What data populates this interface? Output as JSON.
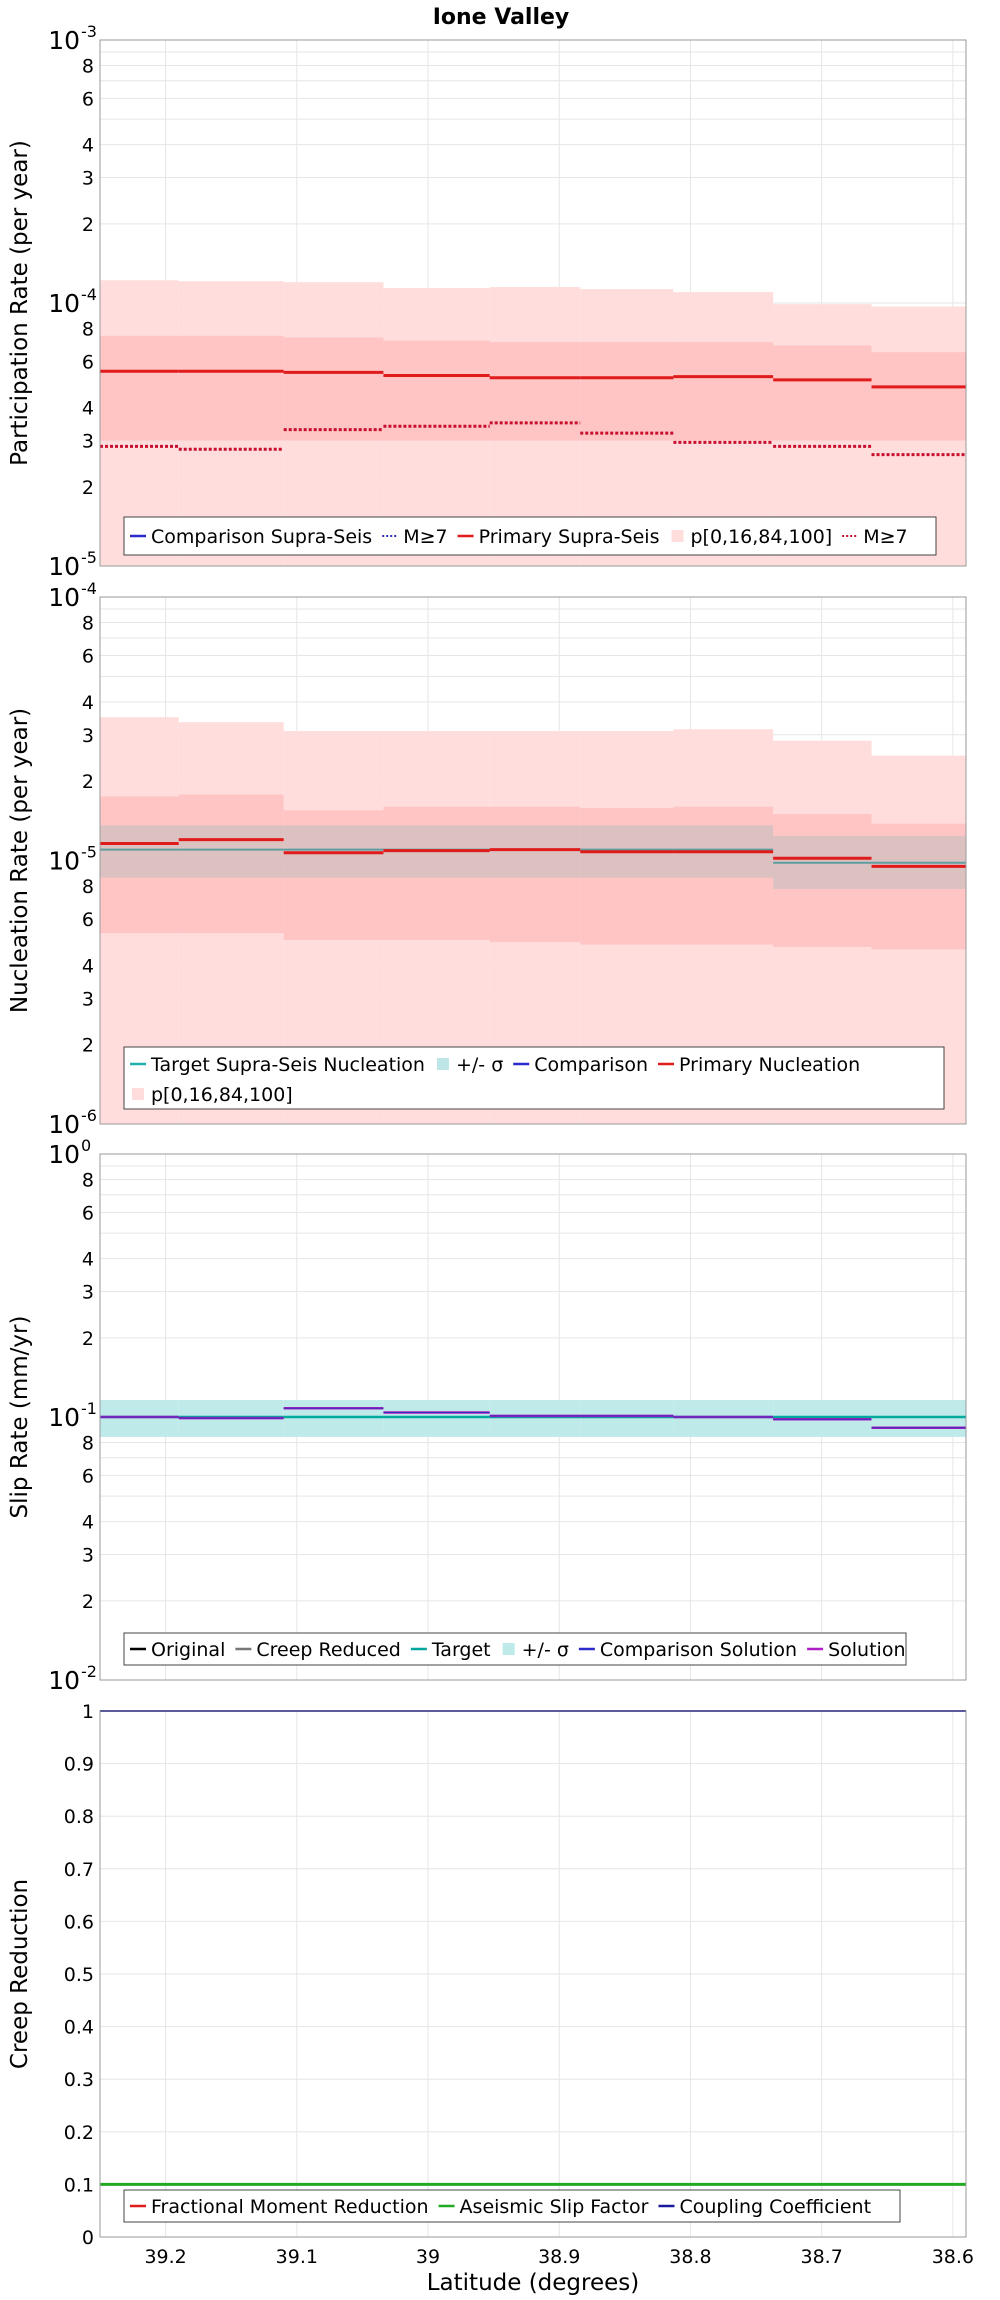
{
  "figure": {
    "title": "Ione Valley",
    "xlabel": "Latitude (degrees)",
    "x_ticks": [
      "39.2",
      "39.1",
      "39",
      "38.9",
      "38.8",
      "38.7",
      "38.6"
    ]
  },
  "chart_data": [
    {
      "type": "line",
      "ylabel": "Participation Rate (per year)",
      "yscale": "log",
      "ylim": [
        1e-05,
        0.001
      ],
      "xlim": [
        39.25,
        38.59
      ],
      "x_edges": [
        39.25,
        39.19,
        39.11,
        39.034,
        38.953,
        38.884,
        38.813,
        38.737,
        38.662,
        38.59
      ],
      "bands": [
        {
          "name": "p[0,16,84,100]",
          "color": "#ffdddd",
          "lo": [
            1e-05,
            1e-05,
            1e-05,
            1e-05,
            1e-05,
            1e-05,
            1e-05,
            1e-05,
            1e-05
          ],
          "hi": [
            0.000122,
            0.000121,
            0.00012,
            0.000114,
            0.000115,
            0.000113,
            0.00011,
            9.9e-05,
            9.7e-05
          ]
        },
        {
          "name": "p16-84",
          "color": "#ffc4c4",
          "lo": [
            3e-05,
            3e-05,
            3e-05,
            3e-05,
            3e-05,
            3e-05,
            3e-05,
            3e-05,
            3e-05
          ],
          "hi": [
            7.5e-05,
            7.5e-05,
            7.4e-05,
            7.2e-05,
            7.1e-05,
            7.1e-05,
            7.1e-05,
            6.9e-05,
            6.5e-05
          ]
        }
      ],
      "series": [
        {
          "name": "Primary Supra-Seis",
          "color": "#e01b1b",
          "width": 3,
          "dash": "",
          "values": [
            5.5e-05,
            5.5e-05,
            5.45e-05,
            5.3e-05,
            5.2e-05,
            5.2e-05,
            5.25e-05,
            5.1e-05,
            4.8e-05
          ]
        },
        {
          "name": "M≥7",
          "color": "#c8102e",
          "width": 3,
          "dash": "3,2",
          "values": [
            2.85e-05,
            2.78e-05,
            3.3e-05,
            3.4e-05,
            3.5e-05,
            3.2e-05,
            2.95e-05,
            2.85e-05,
            2.65e-05
          ]
        }
      ],
      "legend": [
        {
          "label": "Comparison Supra-Seis",
          "color": "#2b2bcc",
          "style": "line"
        },
        {
          "label": "M≥7",
          "color": "#2b2bcc",
          "style": "dot"
        },
        {
          "label": "Primary Supra-Seis",
          "color": "#e01b1b",
          "style": "line"
        },
        {
          "label": "p[0,16,84,100]",
          "color": "#ffdddd",
          "style": "box"
        },
        {
          "label": "M≥7",
          "color": "#c8102e",
          "style": "dot"
        }
      ]
    },
    {
      "type": "line",
      "ylabel": "Nucleation Rate (per year)",
      "yscale": "log",
      "ylim": [
        1e-06,
        0.0001
      ],
      "xlim": [
        39.25,
        38.59
      ],
      "x_edges": [
        39.25,
        39.19,
        39.11,
        39.034,
        38.953,
        38.884,
        38.813,
        38.737,
        38.662,
        38.59
      ],
      "bands": [
        {
          "name": "p[0,16,84,100]",
          "color": "#ffdddd",
          "lo": [
            1e-06,
            1e-06,
            1e-06,
            1e-06,
            1e-06,
            1e-06,
            1e-06,
            1e-06,
            1e-06
          ],
          "hi": [
            3.5e-05,
            3.35e-05,
            3.1e-05,
            3.1e-05,
            3.1e-05,
            3.1e-05,
            3.15e-05,
            2.85e-05,
            2.5e-05
          ]
        },
        {
          "name": "p16-84",
          "color": "#ffc4c4",
          "lo": [
            5.3e-06,
            5.3e-06,
            5e-06,
            5e-06,
            4.9e-06,
            4.8e-06,
            4.8e-06,
            4.7e-06,
            4.6e-06
          ],
          "hi": [
            1.75e-05,
            1.78e-05,
            1.55e-05,
            1.6e-05,
            1.6e-05,
            1.58e-05,
            1.6e-05,
            1.5e-05,
            1.38e-05
          ]
        },
        {
          "name": "+/- σ",
          "color": "#bfbfbf",
          "opacity": 0.55,
          "lo": [
            8.6e-06,
            8.6e-06,
            8.6e-06,
            8.6e-06,
            8.6e-06,
            8.6e-06,
            8.6e-06,
            7.8e-06,
            7.8e-06
          ],
          "hi": [
            1.36e-05,
            1.36e-05,
            1.36e-05,
            1.36e-05,
            1.36e-05,
            1.36e-05,
            1.36e-05,
            1.24e-05,
            1.24e-05
          ]
        }
      ],
      "series": [
        {
          "name": "Target Supra-Seis Nucleation",
          "color": "#5f9ea0",
          "width": 2,
          "dash": "",
          "values": [
            1.1e-05,
            1.1e-05,
            1.1e-05,
            1.1e-05,
            1.1e-05,
            1.1e-05,
            1.1e-05,
            9.8e-06,
            9.8e-06
          ]
        },
        {
          "name": "Primary Nucleation",
          "color": "#e01b1b",
          "width": 3,
          "dash": "",
          "values": [
            1.16e-05,
            1.2e-05,
            1.07e-05,
            1.09e-05,
            1.1e-05,
            1.08e-05,
            1.08e-05,
            1.02e-05,
            9.5e-06
          ]
        }
      ],
      "legend": [
        {
          "label": "Target Supra-Seis Nucleation",
          "color": "#20b2aa",
          "style": "line"
        },
        {
          "label": "+/- σ",
          "color": "#bfe6e6",
          "style": "box"
        },
        {
          "label": "Comparison",
          "color": "#2b2bcc",
          "style": "line"
        },
        {
          "label": "Primary Nucleation",
          "color": "#e01b1b",
          "style": "line"
        },
        {
          "label": "p[0,16,84,100]",
          "color": "#ffdddd",
          "style": "box"
        }
      ]
    },
    {
      "type": "line",
      "ylabel": "Slip Rate (mm/yr)",
      "yscale": "log",
      "ylim": [
        0.01,
        1
      ],
      "xlim": [
        39.25,
        38.59
      ],
      "x_edges": [
        39.25,
        39.19,
        39.11,
        39.034,
        38.953,
        38.884,
        38.813,
        38.737,
        38.662,
        38.59
      ],
      "bands": [
        {
          "name": "+/- σ",
          "color": "#bfeaea",
          "lo": [
            0.084,
            0.084,
            0.084,
            0.084,
            0.084,
            0.084,
            0.084,
            0.084,
            0.084
          ],
          "hi": [
            0.116,
            0.116,
            0.116,
            0.116,
            0.116,
            0.116,
            0.116,
            0.116,
            0.116
          ]
        }
      ],
      "series": [
        {
          "name": "Target",
          "color": "#00a89d",
          "width": 2.5,
          "dash": "",
          "values": [
            0.1,
            0.1,
            0.1,
            0.1,
            0.1,
            0.1,
            0.1,
            0.1,
            0.1
          ]
        },
        {
          "name": "Solution",
          "color": "#b01ec8",
          "width": 2.5,
          "dash": "",
          "values": [
            0.1,
            0.099,
            0.108,
            0.104,
            0.101,
            0.101,
            0.1,
            0.098,
            0.091
          ]
        },
        {
          "name": "Comparison Solution",
          "color": "#3030b0",
          "width": 1,
          "dash": "",
          "values": [
            0.1,
            0.099,
            0.108,
            0.104,
            0.101,
            0.101,
            0.1,
            0.098,
            0.091
          ]
        }
      ],
      "legend": [
        {
          "label": "Original",
          "color": "#000000",
          "style": "line"
        },
        {
          "label": "Creep Reduced",
          "color": "#777777",
          "style": "line"
        },
        {
          "label": "Target",
          "color": "#00a89d",
          "style": "line"
        },
        {
          "label": "+/- σ",
          "color": "#bfeaea",
          "style": "box"
        },
        {
          "label": "Comparison Solution",
          "color": "#2b2bcc",
          "style": "line"
        },
        {
          "label": "Solution",
          "color": "#b01ec8",
          "style": "line"
        }
      ]
    },
    {
      "type": "line",
      "ylabel": "Creep Reduction",
      "yscale": "linear",
      "ylim": [
        0,
        1
      ],
      "xlim": [
        39.25,
        38.59
      ],
      "y_ticks": [
        "0",
        "0.1",
        "0.2",
        "0.3",
        "0.4",
        "0.5",
        "0.6",
        "0.7",
        "0.8",
        "0.9",
        "1"
      ],
      "x_edges": [
        39.25,
        38.59
      ],
      "bands": [],
      "series": [
        {
          "name": "Aseismic Slip Factor",
          "color": "#22aa22",
          "width": 3,
          "dash": "",
          "values": [
            0.1
          ]
        },
        {
          "name": "Coupling Coefficient",
          "color": "#1a1aa0",
          "width": 2,
          "dash": "",
          "values": [
            1.0
          ]
        }
      ],
      "legend": [
        {
          "label": "Fractional Moment Reduction",
          "color": "#e01b1b",
          "style": "line"
        },
        {
          "label": "Aseismic Slip Factor",
          "color": "#22aa22",
          "style": "line"
        },
        {
          "label": "Coupling Coefficient",
          "color": "#1a1aa0",
          "style": "line"
        }
      ]
    }
  ]
}
